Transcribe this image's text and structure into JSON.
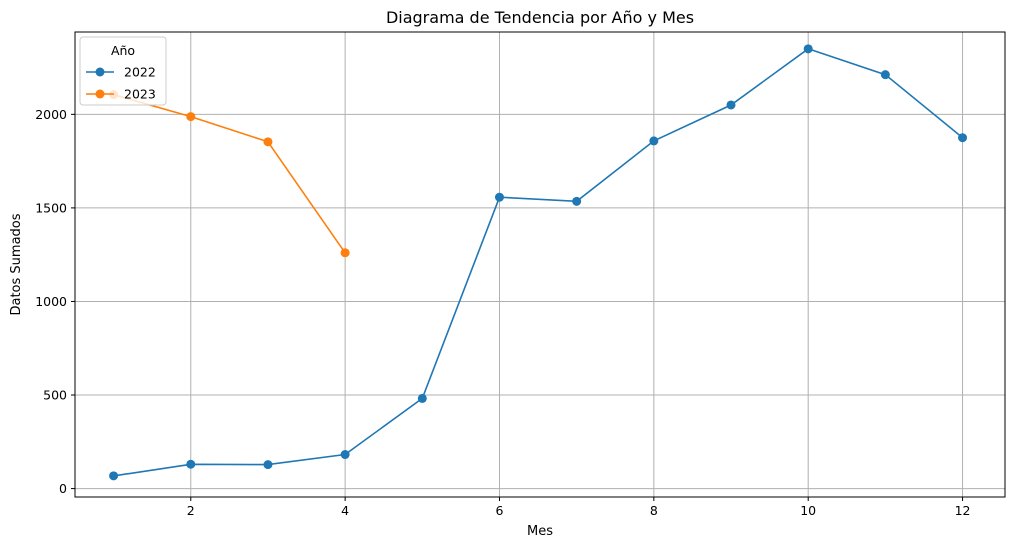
{
  "chart_data": {
    "type": "line",
    "title": "Diagrama de Tendencia por Año y Mes",
    "xlabel": "Mes",
    "ylabel": "Datos Sumados",
    "xlim": [
      0.5,
      12.55
    ],
    "ylim": [
      -45,
      2440
    ],
    "x_ticks": [
      2,
      4,
      6,
      8,
      10,
      12
    ],
    "y_ticks": [
      0,
      500,
      1000,
      1500,
      2000
    ],
    "grid": true,
    "legend": {
      "title": "Año",
      "placement": "top-left"
    },
    "series": [
      {
        "name": "2022",
        "color": "#1f77b4",
        "x": [
          1,
          2,
          3,
          4,
          5,
          6,
          7,
          8,
          9,
          10,
          11,
          12
        ],
        "values": [
          68,
          130,
          128,
          182,
          482,
          1557,
          1535,
          1858,
          2050,
          2350,
          2212,
          1875
        ]
      },
      {
        "name": "2023",
        "color": "#ff7f0e",
        "x": [
          1,
          2,
          3,
          4
        ],
        "values": [
          2105,
          1988,
          1853,
          1260
        ]
      }
    ]
  }
}
